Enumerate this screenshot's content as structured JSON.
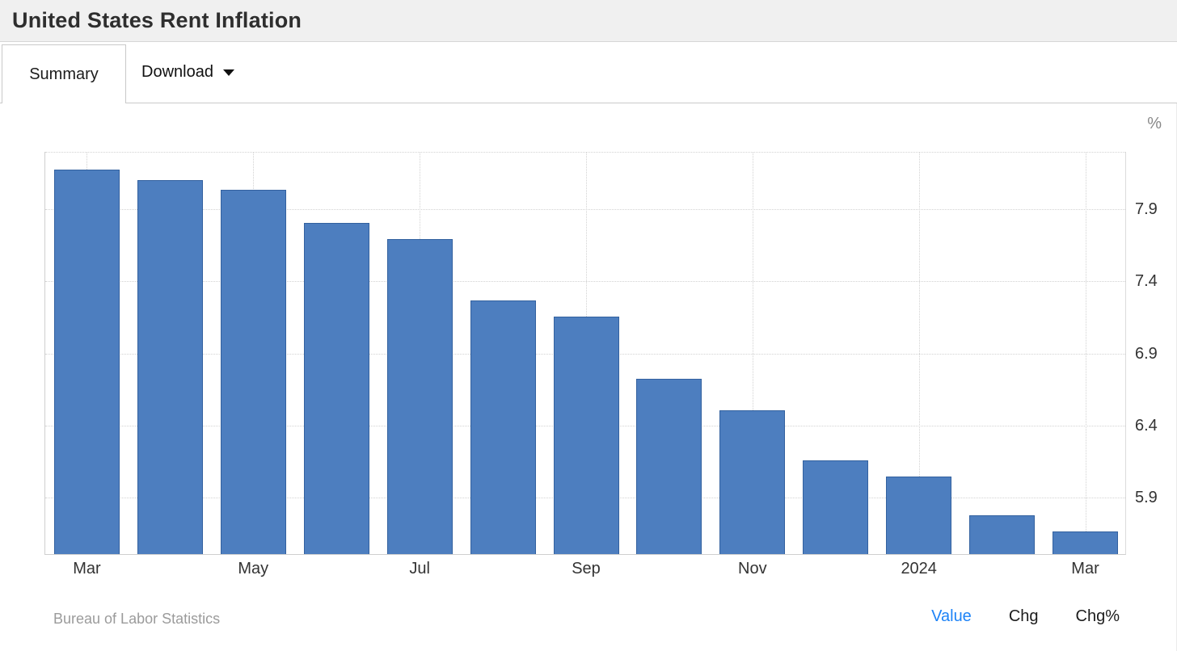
{
  "header": {
    "title": "United States Rent Inflation"
  },
  "tabs": {
    "summary": "Summary",
    "download": "Download"
  },
  "chart_data": {
    "type": "bar",
    "title": "United States Rent Inflation",
    "unit_label": "%",
    "categories": [
      "Mar 2023",
      "Apr 2023",
      "May 2023",
      "Jun 2023",
      "Jul 2023",
      "Aug 2023",
      "Sep 2023",
      "Oct 2023",
      "Nov 2023",
      "Dec 2023",
      "Jan 2024",
      "Feb 2024",
      "Mar 2024"
    ],
    "values": [
      8.17,
      8.1,
      8.03,
      7.8,
      7.69,
      7.26,
      7.15,
      6.72,
      6.5,
      6.15,
      6.04,
      5.77,
      5.66
    ],
    "x_tick_labels": [
      {
        "index": 0,
        "label": "Mar"
      },
      {
        "index": 2,
        "label": "May"
      },
      {
        "index": 4,
        "label": "Jul"
      },
      {
        "index": 6,
        "label": "Sep"
      },
      {
        "index": 8,
        "label": "Nov"
      },
      {
        "index": 10,
        "label": "2024"
      },
      {
        "index": 12,
        "label": "Mar"
      }
    ],
    "y_ticks": [
      "5.9",
      "6.4",
      "6.9",
      "7.4",
      "7.9"
    ],
    "ylim": [
      5.5,
      8.3
    ],
    "grid": "dotted, horizontal at y ticks and top, vertical at labeled x ticks",
    "legend_position": "none",
    "bar_color": "#4d7ebf",
    "bar_border_color": "#33619f"
  },
  "footer": {
    "source": "Bureau of Labor Statistics",
    "views": [
      {
        "label": "Value",
        "active": true
      },
      {
        "label": "Chg",
        "active": false
      },
      {
        "label": "Chg%",
        "active": false
      }
    ]
  },
  "colors": {
    "header_bg": "#f0f0f0",
    "active_link_blue": "#1d83f7",
    "bar_fill": "#4d7ebf",
    "bar_border": "#33619f",
    "gridline": "#d2d2d2",
    "muted_text": "#9b9b9b"
  }
}
